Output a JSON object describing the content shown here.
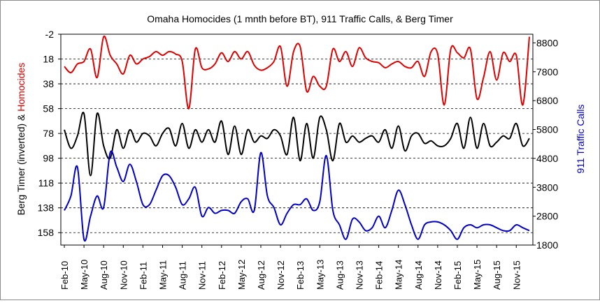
{
  "chart_data": {
    "type": "line",
    "title": "Omaha Homocides (1 mnth before BT), 911 Traffic Calls, & Berg Timer",
    "ylabel_left_part1": "Berg Timer (inverted) & ",
    "ylabel_left_part2": "Homocides",
    "ylabel_right": "911 Traffic Calls",
    "left_axis": {
      "ticks": [
        -2,
        18,
        38,
        58,
        78,
        98,
        118,
        138,
        158
      ],
      "ylim": [
        -2,
        168
      ],
      "inverted": true
    },
    "right_axis": {
      "ticks": [
        8800,
        7800,
        6800,
        5800,
        4800,
        3800,
        2800,
        1800
      ],
      "ylim": [
        1800,
        9100
      ]
    },
    "x_ticks": [
      "Feb-10",
      "May-10",
      "Aug-10",
      "Nov-10",
      "Feb-11",
      "May-11",
      "Aug-11",
      "Nov-11",
      "Feb-12",
      "May-12",
      "Aug-12",
      "Nov-12",
      "Feb-13",
      "May-13",
      "Aug-13",
      "Nov-13",
      "Feb-14",
      "May-14",
      "Aug-14",
      "Nov-14",
      "Feb-15",
      "May-15",
      "Aug-15",
      "Nov-15"
    ],
    "x_range_months": [
      0,
      71
    ],
    "grid": "horizontal dashed",
    "colors": {
      "homicides": "#e00000",
      "berg": "#000000",
      "calls": "#0000c8",
      "ylabel_homicides": "#e00000",
      "ylabel_right": "#0000c8"
    },
    "series": [
      {
        "name": "Homocides",
        "axis": "left",
        "x": [
          0,
          1,
          2,
          3,
          4,
          5,
          6,
          7,
          8,
          9,
          10,
          11,
          12,
          13,
          14,
          15,
          16,
          17,
          18,
          19,
          20,
          21,
          22,
          23,
          24,
          25,
          26,
          27,
          28,
          29,
          30,
          31,
          32,
          33,
          34,
          35,
          36,
          37,
          38,
          39,
          40,
          41,
          42,
          43,
          44,
          45,
          46,
          47,
          48,
          49,
          50,
          51,
          52,
          53,
          54,
          55,
          56,
          57,
          58,
          59,
          60,
          61,
          62,
          63,
          64,
          65,
          66,
          67,
          68,
          69,
          70,
          71
        ],
        "values": [
          24,
          29,
          22,
          20,
          10,
          33,
          0,
          15,
          22,
          30,
          15,
          22,
          18,
          16,
          12,
          15,
          12,
          14,
          20,
          58,
          10,
          25,
          26,
          22,
          13,
          20,
          12,
          18,
          12,
          23,
          27,
          25,
          20,
          8,
          40,
          12,
          8,
          44,
          32,
          40,
          40,
          10,
          20,
          12,
          24,
          9,
          17,
          20,
          21,
          25,
          22,
          20,
          24,
          25,
          20,
          32,
          12,
          14,
          55,
          10,
          13,
          17,
          10,
          50,
          33,
          12,
          35,
          13,
          20,
          15,
          55,
          0
        ]
      },
      {
        "name": "Berg Timer",
        "axis": "left",
        "x": [
          0,
          1,
          2,
          3,
          4,
          5,
          6,
          7,
          8,
          9,
          10,
          11,
          12,
          13,
          14,
          15,
          16,
          17,
          18,
          19,
          20,
          21,
          22,
          23,
          24,
          25,
          26,
          27,
          28,
          29,
          30,
          31,
          32,
          33,
          34,
          35,
          36,
          37,
          38,
          39,
          40,
          41,
          42,
          43,
          44,
          45,
          46,
          47,
          48,
          49,
          50,
          51,
          52,
          53,
          54,
          55,
          56,
          57,
          58,
          59,
          60,
          61,
          62,
          63,
          64,
          65,
          66,
          67,
          68,
          69,
          70,
          71
        ],
        "values": [
          75,
          90,
          80,
          62,
          112,
          62,
          88,
          98,
          75,
          90,
          75,
          85,
          78,
          80,
          88,
          78,
          74,
          88,
          70,
          90,
          75,
          85,
          75,
          85,
          68,
          95,
          72,
          95,
          75,
          85,
          80,
          82,
          75,
          80,
          95,
          65,
          100,
          70,
          98,
          65,
          75,
          100,
          70,
          85,
          80,
          85,
          82,
          80,
          85,
          75,
          90,
          72,
          92,
          80,
          78,
          86,
          84,
          88,
          88,
          82,
          70,
          90,
          65,
          90,
          70,
          88,
          85,
          80,
          82,
          70,
          88,
          82
        ]
      },
      {
        "name": "911 Traffic Calls",
        "axis": "right",
        "x": [
          0,
          1,
          2,
          3,
          4,
          5,
          6,
          7,
          8,
          9,
          10,
          11,
          12,
          13,
          14,
          15,
          16,
          17,
          18,
          19,
          20,
          21,
          22,
          23,
          24,
          25,
          26,
          27,
          28,
          29,
          30,
          31,
          32,
          33,
          34,
          35,
          36,
          37,
          38,
          39,
          40,
          41,
          42,
          43,
          44,
          45,
          46,
          47,
          48,
          49,
          50,
          51,
          52,
          53,
          54,
          55,
          56,
          57,
          58,
          59,
          60,
          61,
          62,
          63,
          64,
          65,
          66,
          67,
          68,
          69,
          70,
          71
        ],
        "values": [
          3000,
          3500,
          4500,
          2000,
          2800,
          3500,
          3100,
          5000,
          4500,
          4000,
          4600,
          4000,
          3200,
          3200,
          3700,
          4200,
          4200,
          3800,
          3200,
          3400,
          3800,
          2800,
          3100,
          2900,
          3000,
          3000,
          2900,
          3300,
          3400,
          3000,
          5000,
          3500,
          3100,
          2500,
          2900,
          3200,
          3200,
          3400,
          3000,
          3300,
          4900,
          3000,
          2500,
          2000,
          2700,
          2600,
          2300,
          2400,
          2800,
          2400,
          3000,
          3700,
          3200,
          2500,
          2000,
          2500,
          2600,
          2600,
          2500,
          2300,
          2000,
          2400,
          2500,
          2400,
          2500,
          2500,
          2400,
          2300,
          2300,
          2500,
          2400,
          2300
        ]
      }
    ]
  }
}
